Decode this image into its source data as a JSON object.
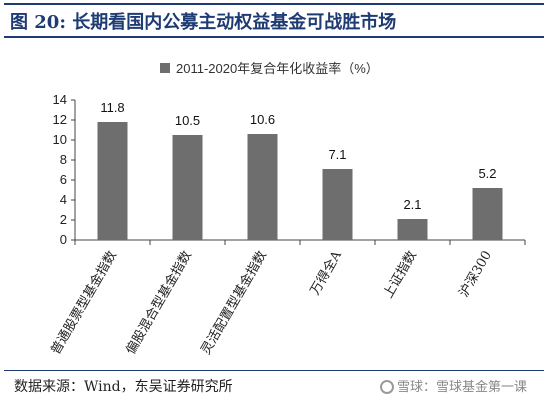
{
  "header": {
    "title": "图 20: 长期看国内公募主动权益基金可战胜市场"
  },
  "footer": {
    "source": "数据来源：Wind，东吴证券研究所",
    "watermark": "雪球：雪球基金第一课"
  },
  "colors": {
    "bar": "#6e6e6e",
    "title": "#1f3b73",
    "axis": "#444444"
  },
  "chart_data": {
    "type": "bar",
    "title": "",
    "legend": [
      "2011-2020年复合年化收益率（%）"
    ],
    "legend_position": "top",
    "categories": [
      "普通股票型基金指数",
      "偏股混合型基金指数",
      "灵活配置型基金指数",
      "万得全A",
      "上证指数",
      "沪深300"
    ],
    "series": [
      {
        "name": "2011-2020年复合年化收益率（%）",
        "values": [
          11.8,
          10.5,
          10.6,
          7.1,
          2.1,
          5.2
        ]
      }
    ],
    "data_labels": [
      "11.8",
      "10.5",
      "10.6",
      "7.1",
      "2.1",
      "5.2"
    ],
    "ylim": [
      0,
      14
    ],
    "yticks": [
      0,
      2,
      4,
      6,
      8,
      10,
      12,
      14
    ],
    "xlabel": "",
    "ylabel": "",
    "grid": false
  }
}
